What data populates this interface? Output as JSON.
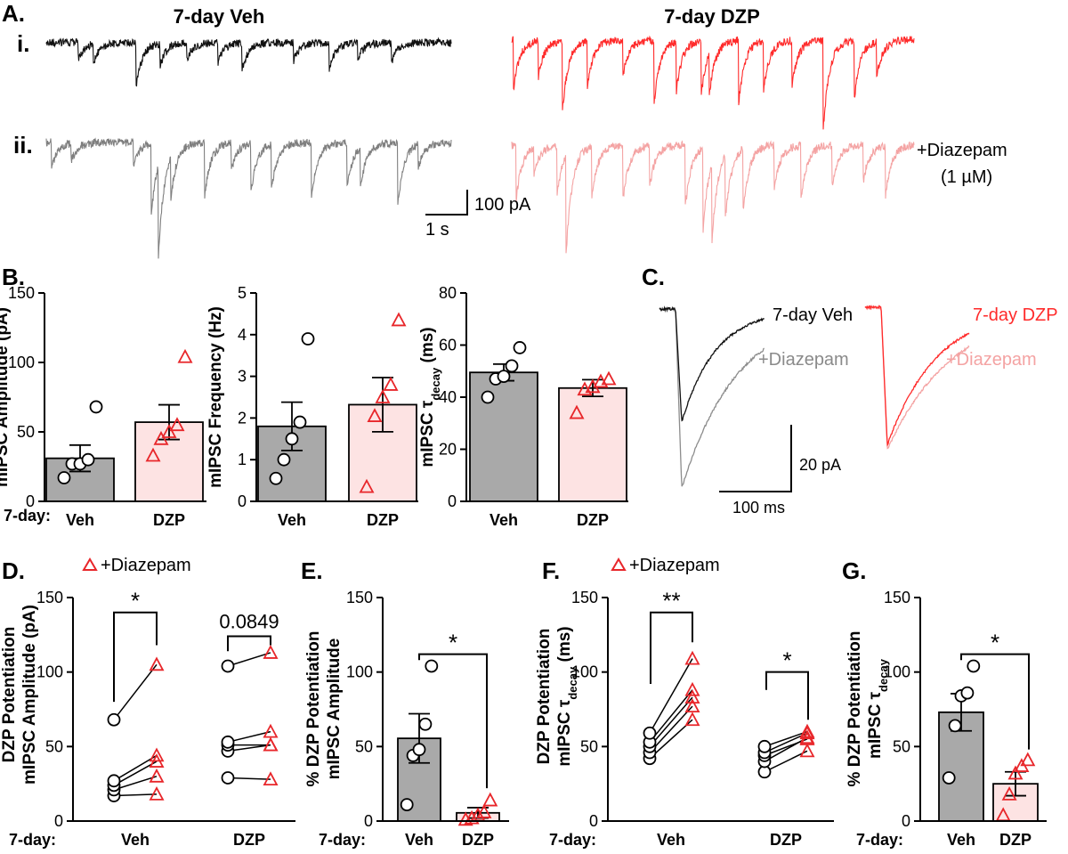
{
  "panel_labels": {
    "a": "A.",
    "a_i": "i.",
    "a_ii": "ii.",
    "b": "B.",
    "c": "C.",
    "d": "D.",
    "e": "E.",
    "f": "F.",
    "g": "G."
  },
  "colors": {
    "veh": "#111111",
    "veh_diaz": "#7f7f7f",
    "dzp": "#ff2a2a",
    "dzp_diaz": "#f4a3a3",
    "bar_veh": "#a9a9a9",
    "bar_dzp": "#fde3e3",
    "marker_red": "#e8262a"
  },
  "traces": {
    "title_veh": "7-day Veh",
    "title_dzp": "7-day DZP",
    "diazepam_label": "+Diazepam",
    "diazepam_conc": "(1 µM)",
    "scale_y": "100 pA",
    "scale_x": "1 s"
  },
  "avg_traces": {
    "label_veh": "7-day Veh",
    "label_dzp": "7-day DZP",
    "label_diaz": "+Diazepam",
    "scale_y": "20 pA",
    "scale_x": "100 ms"
  },
  "common": {
    "row_label": "7-day:",
    "legend": "+Diazepam"
  },
  "chart_data": [
    {
      "id": "B1",
      "type": "bar",
      "ylabel": "mIPSC Amplitude (pA)",
      "categories": [
        "Veh",
        "DZP"
      ],
      "ylim": [
        0,
        150
      ],
      "yticks": [
        0,
        50,
        100,
        150
      ],
      "means": [
        31,
        57
      ],
      "sem": [
        9.5,
        12.5
      ],
      "points": [
        [
          17,
          27,
          27,
          30,
          68
        ],
        [
          33,
          45,
          50,
          55,
          104
        ]
      ]
    },
    {
      "id": "B2",
      "type": "bar",
      "ylabel": "mIPSC Frequency (Hz)",
      "categories": [
        "Veh",
        "DZP"
      ],
      "ylim": [
        0,
        5
      ],
      "yticks": [
        0,
        1,
        2,
        3,
        4,
        5
      ],
      "means": [
        1.8,
        2.32
      ],
      "sem": [
        0.58,
        0.65
      ],
      "points": [
        [
          0.55,
          1.0,
          1.5,
          1.9,
          3.9
        ],
        [
          0.35,
          2.05,
          2.5,
          2.8,
          4.35
        ]
      ]
    },
    {
      "id": "B3",
      "type": "bar",
      "ylabel": "mIPSC τdecay (ms)",
      "ylabel_main": "mIPSC τ",
      "ylabel_sub": "decay",
      "ylabel_unit": " (ms)",
      "categories": [
        "Veh",
        "DZP"
      ],
      "ylim": [
        0,
        80
      ],
      "yticks": [
        0,
        20,
        40,
        60,
        80
      ],
      "means": [
        49.5,
        43.5
      ],
      "sem": [
        3.2,
        3.2
      ],
      "points": [
        [
          40,
          47,
          48,
          52,
          59
        ],
        [
          34,
          43,
          44,
          46,
          47
        ]
      ]
    },
    {
      "id": "D",
      "type": "paired",
      "ylabel_line1": "DZP Potentiation",
      "ylabel_line2": "mIPSC Amplitude (pA)",
      "categories": [
        "Veh",
        "DZP"
      ],
      "ylim": [
        0,
        150
      ],
      "yticks": [
        0,
        50,
        100,
        150
      ],
      "pairs": [
        [
          [
            17,
            18
          ],
          [
            21,
            30
          ],
          [
            24,
            40
          ],
          [
            27,
            44
          ],
          [
            68,
            105
          ]
        ],
        [
          [
            29,
            28
          ],
          [
            47,
            51
          ],
          [
            51,
            51
          ],
          [
            53,
            60
          ],
          [
            104,
            113
          ]
        ]
      ],
      "sig": [
        "*",
        "0.0849"
      ]
    },
    {
      "id": "E",
      "type": "bar",
      "ylabel_line1": "% DZP Potentiation",
      "ylabel_line2": "mIPSC Amplitude",
      "categories": [
        "Veh",
        "DZP"
      ],
      "ylim": [
        0,
        150
      ],
      "yticks": [
        0,
        50,
        100,
        150
      ],
      "means": [
        55.5,
        5.5
      ],
      "sem": [
        16.5,
        3.5
      ],
      "points": [
        [
          11,
          44,
          48,
          65,
          104
        ],
        [
          1,
          2,
          4,
          6,
          14
        ]
      ],
      "sig": "*"
    },
    {
      "id": "F",
      "type": "paired",
      "ylabel_line1": "DZP Potentiation",
      "ylabel_line2_main": "mIPSC τ",
      "ylabel_line2_sub": "decay",
      "ylabel_line2_unit": " (ms)",
      "categories": [
        "Veh",
        "DZP"
      ],
      "ylim": [
        0,
        150
      ],
      "yticks": [
        0,
        50,
        100,
        150
      ],
      "pairs": [
        [
          [
            42,
            68
          ],
          [
            46,
            77
          ],
          [
            50,
            83
          ],
          [
            53,
            88
          ],
          [
            59,
            109
          ]
        ],
        [
          [
            33,
            47
          ],
          [
            40,
            56
          ],
          [
            44,
            55
          ],
          [
            46,
            59
          ],
          [
            50,
            60
          ]
        ]
      ],
      "sig": [
        "**",
        "*"
      ]
    },
    {
      "id": "G",
      "type": "bar",
      "ylabel_line1": "% DZP Potentiation",
      "ylabel_line2_main": "mIPSC τ",
      "ylabel_line2_sub": "decay",
      "categories": [
        "Veh",
        "DZP"
      ],
      "ylim": [
        0,
        150
      ],
      "yticks": [
        0,
        50,
        100,
        150
      ],
      "means": [
        73,
        25
      ],
      "sem": [
        12.5,
        8
      ],
      "points": [
        [
          29,
          64,
          84,
          86,
          104
        ],
        [
          4,
          18,
          32,
          37,
          41
        ]
      ],
      "sig": "*"
    }
  ]
}
